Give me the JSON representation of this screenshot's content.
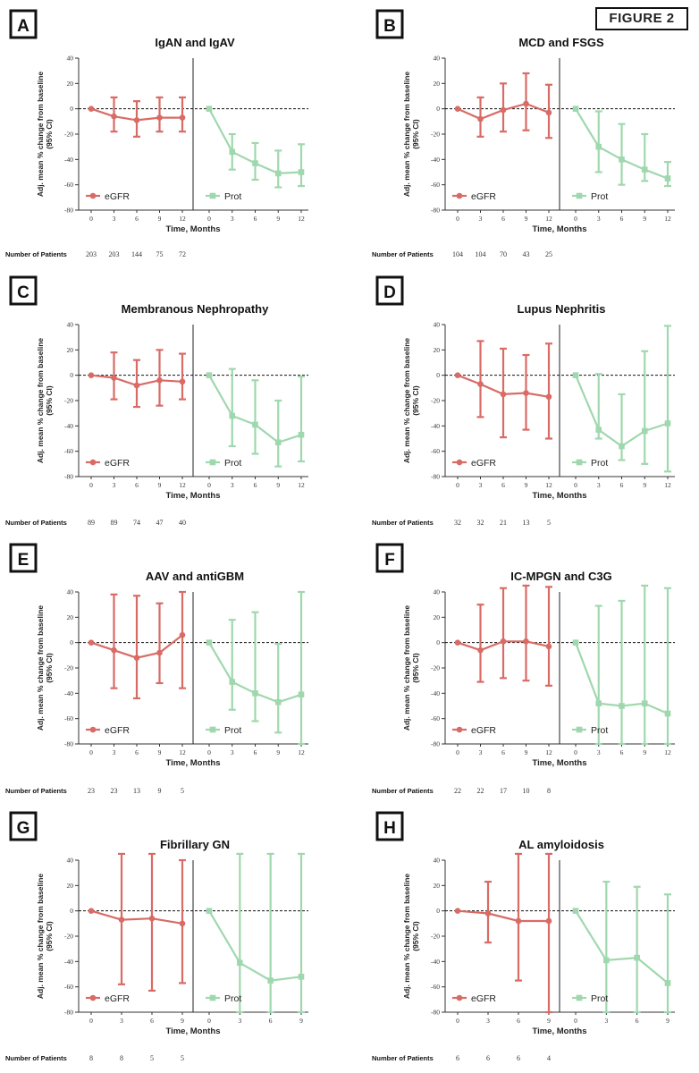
{
  "figure_label": "FIGURE 2",
  "common": {
    "ylabel_line1": "Adj. mean % change from baseline",
    "ylabel_line2": "(95% CI)",
    "xlabel": "Time, Months",
    "patients_label": "Number of Patients",
    "legend_egfr": "eGFR",
    "legend_prot": "Prot",
    "colors": {
      "egfr": "#d96b66",
      "prot": "#9fd8ae",
      "axis": "#333333"
    }
  },
  "chart_data": [
    {
      "panel": "A",
      "type": "line",
      "title": "IgAN and IgAV",
      "xlabel": "Time, Months",
      "x": [
        0,
        3,
        6,
        9,
        12
      ],
      "ylim": [
        -80,
        40
      ],
      "yticks": [
        -80,
        -60,
        -40,
        -20,
        0,
        20,
        40
      ],
      "series": [
        {
          "name": "eGFR",
          "y": [
            0,
            -6,
            -9,
            -7,
            -7
          ],
          "lower": [
            0,
            -18,
            -22,
            -18,
            -18
          ],
          "upper": [
            0,
            9,
            6,
            9,
            9
          ]
        },
        {
          "name": "Prot",
          "y": [
            0,
            -34,
            -43,
            -51,
            -50
          ],
          "lower": [
            0,
            -48,
            -56,
            -62,
            -61
          ],
          "upper": [
            0,
            -20,
            -27,
            -33,
            -28
          ]
        }
      ],
      "patients": [
        "203",
        "203",
        "144",
        "75",
        "72"
      ]
    },
    {
      "panel": "B",
      "type": "line",
      "title": "MCD and FSGS",
      "xlabel": "Time, Months",
      "x": [
        0,
        3,
        6,
        9,
        12
      ],
      "ylim": [
        -80,
        40
      ],
      "yticks": [
        -80,
        -60,
        -40,
        -20,
        0,
        20,
        40
      ],
      "series": [
        {
          "name": "eGFR",
          "y": [
            0,
            -8,
            -1,
            4,
            -3
          ],
          "lower": [
            0,
            -22,
            -18,
            -17,
            -23
          ],
          "upper": [
            0,
            9,
            20,
            28,
            19
          ]
        },
        {
          "name": "Prot",
          "y": [
            0,
            -30,
            -40,
            -48,
            -55
          ],
          "lower": [
            0,
            -50,
            -60,
            -57,
            -61
          ],
          "upper": [
            0,
            -2,
            -12,
            -20,
            -42
          ]
        }
      ],
      "patients": [
        "104",
        "104",
        "70",
        "43",
        "25"
      ]
    },
    {
      "panel": "C",
      "type": "line",
      "title": "Membranous Nephropathy",
      "xlabel": "Time, Months",
      "x": [
        0,
        3,
        6,
        9,
        12
      ],
      "ylim": [
        -80,
        40
      ],
      "yticks": [
        -80,
        -60,
        -40,
        -20,
        0,
        20,
        40
      ],
      "series": [
        {
          "name": "eGFR",
          "y": [
            0,
            -2,
            -8,
            -4,
            -5
          ],
          "lower": [
            0,
            -19,
            -25,
            -24,
            -19
          ],
          "upper": [
            0,
            18,
            12,
            20,
            17
          ]
        },
        {
          "name": "Prot",
          "y": [
            0,
            -32,
            -39,
            -53,
            -47
          ],
          "lower": [
            0,
            -56,
            -62,
            -72,
            -68
          ],
          "upper": [
            0,
            5,
            -4,
            -20,
            -1
          ]
        }
      ],
      "patients": [
        "89",
        "89",
        "74",
        "47",
        "40"
      ]
    },
    {
      "panel": "D",
      "type": "line",
      "title": "Lupus Nephritis",
      "xlabel": "Time, Months",
      "x": [
        0,
        3,
        6,
        9,
        12
      ],
      "ylim": [
        -80,
        40
      ],
      "yticks": [
        -80,
        -60,
        -40,
        -20,
        0,
        20,
        40
      ],
      "series": [
        {
          "name": "eGFR",
          "y": [
            0,
            -7,
            -15,
            -14,
            -17
          ],
          "lower": [
            0,
            -33,
            -49,
            -43,
            -50
          ],
          "upper": [
            0,
            27,
            21,
            16,
            25
          ]
        },
        {
          "name": "Prot",
          "y": [
            0,
            -43,
            -56,
            -44,
            -38
          ],
          "lower": [
            0,
            -50,
            -67,
            -70,
            -76
          ],
          "upper": [
            0,
            1,
            -15,
            19,
            39
          ]
        }
      ],
      "patients": [
        "32",
        "32",
        "21",
        "13",
        "5"
      ]
    },
    {
      "panel": "E",
      "type": "line",
      "title": "AAV and antiGBM",
      "xlabel": "Time, Months",
      "x": [
        0,
        3,
        6,
        9,
        12
      ],
      "ylim": [
        -80,
        40
      ],
      "yticks": [
        -80,
        -60,
        -40,
        -20,
        0,
        20,
        40
      ],
      "series": [
        {
          "name": "eGFR",
          "y": [
            0,
            -6,
            -12,
            -8,
            6
          ],
          "lower": [
            0,
            -36,
            -44,
            -32,
            -36
          ],
          "upper": [
            0,
            38,
            37,
            31,
            40
          ]
        },
        {
          "name": "Prot",
          "y": [
            0,
            -31,
            -40,
            -47,
            -41
          ],
          "lower": [
            0,
            -53,
            -62,
            -71,
            -80
          ],
          "upper": [
            0,
            18,
            24,
            -1,
            40
          ]
        }
      ],
      "patients": [
        "23",
        "23",
        "13",
        "9",
        "5"
      ]
    },
    {
      "panel": "F",
      "type": "line",
      "title": "IC-MPGN and C3G",
      "xlabel": "Time, Months",
      "x": [
        0,
        3,
        6,
        9,
        12
      ],
      "ylim": [
        -80,
        40
      ],
      "yticks": [
        -80,
        -60,
        -40,
        -20,
        0,
        20,
        40
      ],
      "series": [
        {
          "name": "eGFR",
          "y": [
            0,
            -6,
            1,
            1,
            -3
          ],
          "lower": [
            0,
            -31,
            -28,
            -30,
            -34
          ],
          "upper": [
            0,
            30,
            43,
            48,
            44
          ]
        },
        {
          "name": "Prot",
          "y": [
            0,
            -48,
            -50,
            -48,
            -56
          ],
          "lower": [
            0,
            -80,
            -80,
            -80,
            -80
          ],
          "upper": [
            0,
            29,
            33,
            50,
            43
          ]
        }
      ],
      "patients": [
        "22",
        "22",
        "17",
        "10",
        "8"
      ]
    },
    {
      "panel": "G",
      "type": "line",
      "title": "Fibrillary GN",
      "xlabel": "Time, Months",
      "x": [
        0,
        3,
        6,
        9
      ],
      "ylim": [
        -80,
        40
      ],
      "yticks": [
        -80,
        -60,
        -40,
        -20,
        0,
        20,
        40
      ],
      "series": [
        {
          "name": "eGFR",
          "y": [
            0,
            -7,
            -6,
            -10
          ],
          "lower": [
            0,
            -58,
            -63,
            -57
          ],
          "upper": [
            0,
            45,
            45,
            40
          ]
        },
        {
          "name": "Prot",
          "y": [
            0,
            -41,
            -55,
            -52
          ],
          "lower": [
            0,
            -80,
            -80,
            -80
          ],
          "upper": [
            0,
            45,
            45,
            45
          ]
        }
      ],
      "patients": [
        "8",
        "8",
        "5",
        "5"
      ]
    },
    {
      "panel": "H",
      "type": "line",
      "title": "AL amyloidosis",
      "xlabel": "Time, Months",
      "x": [
        0,
        3,
        6,
        9
      ],
      "ylim": [
        -80,
        40
      ],
      "yticks": [
        -80,
        -60,
        -40,
        -20,
        0,
        20,
        40
      ],
      "series": [
        {
          "name": "eGFR",
          "y": [
            0,
            -2,
            -8,
            -8
          ],
          "lower": [
            0,
            -25,
            -55,
            -80
          ],
          "upper": [
            0,
            23,
            45,
            45
          ]
        },
        {
          "name": "Prot",
          "y": [
            0,
            -39,
            -37,
            -57
          ],
          "lower": [
            0,
            -80,
            -80,
            -80
          ],
          "upper": [
            0,
            23,
            19,
            13
          ]
        }
      ],
      "patients": [
        "6",
        "6",
        "6",
        "4"
      ]
    }
  ]
}
